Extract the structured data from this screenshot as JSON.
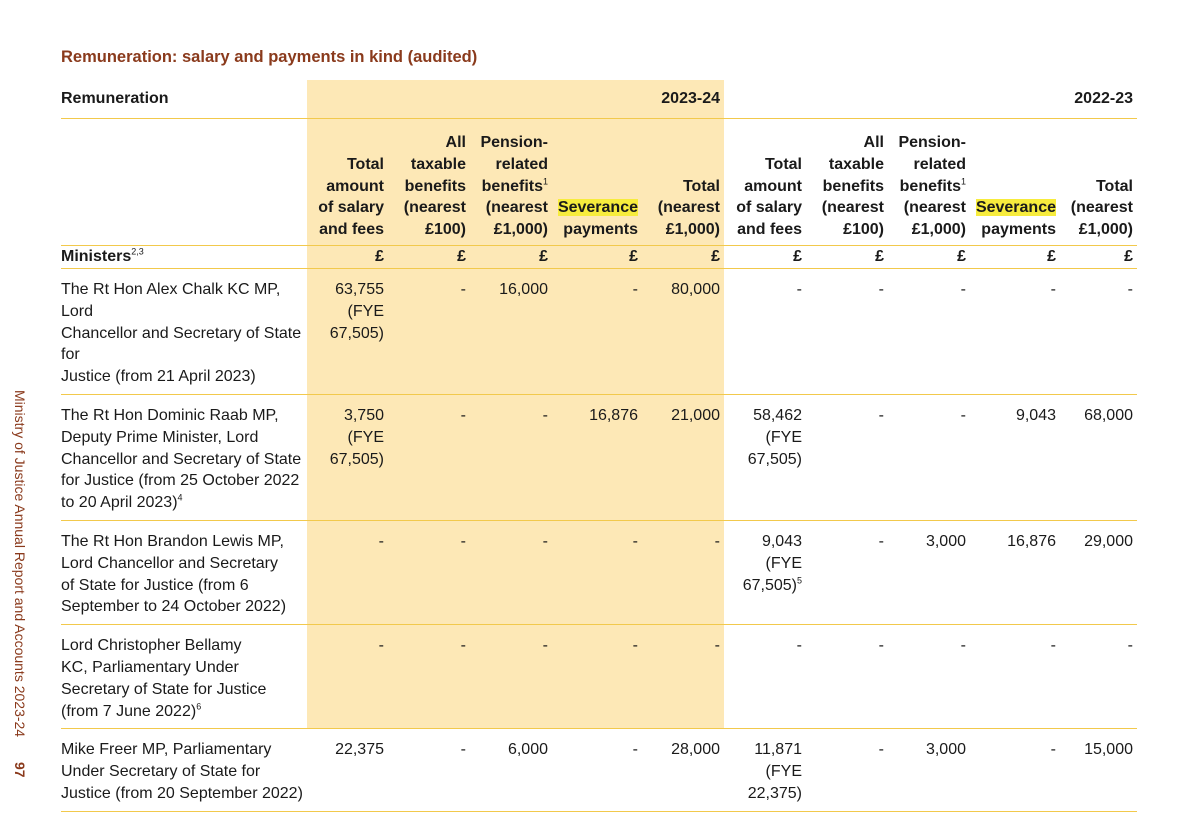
{
  "sidebar": {
    "report_title": "Ministry of Justice Annual Report and Accounts 2023-24",
    "page_number": "97"
  },
  "title": "Remuneration: salary and payments in kind (audited)",
  "year_row": {
    "label": "Remuneration",
    "year_current": "2023-24",
    "year_prior": "2022-23"
  },
  "headers": {
    "salary": [
      "Total",
      "amount",
      "of salary",
      "and fees"
    ],
    "benefits": [
      "All",
      "taxable",
      "benefits",
      "(nearest",
      "£100)"
    ],
    "pension": [
      "Pension-",
      "related",
      "benefits",
      "(nearest",
      "£1,000)"
    ],
    "pension_sup": "1",
    "severance": [
      "Severance",
      "payments"
    ],
    "total": [
      "Total",
      "(nearest",
      "£1,000)"
    ]
  },
  "units": {
    "label": "Ministers",
    "label_sup": "2,3",
    "symbol": "£"
  },
  "rows": [
    {
      "name_lines": [
        "The Rt Hon Alex Chalk KC MP, Lord",
        "Chancellor and Secretary of State for",
        "Justice (from 21 April 2023)"
      ],
      "name_sup": "",
      "c_salary": [
        "63,755",
        "(FYE",
        "67,505)"
      ],
      "c_salary_sup": "",
      "c_benefits": "-",
      "c_pension": "16,000",
      "c_severance": "-",
      "c_total": "80,000",
      "p_salary": [
        "-"
      ],
      "p_salary_sup": "",
      "p_benefits": "-",
      "p_pension": "-",
      "p_severance": "-",
      "p_total": "-"
    },
    {
      "name_lines": [
        "The Rt Hon Dominic Raab MP,",
        "Deputy Prime Minister, Lord",
        "Chancellor and Secretary of State",
        "for Justice (from 25 October 2022",
        "to 20 April 2023)"
      ],
      "name_sup": "4",
      "c_salary": [
        "3,750",
        "(FYE",
        "67,505)"
      ],
      "c_salary_sup": "",
      "c_benefits": "-",
      "c_pension": "-",
      "c_severance": "16,876",
      "c_total": "21,000",
      "p_salary": [
        "58,462",
        "(FYE",
        "67,505)"
      ],
      "p_salary_sup": "",
      "p_benefits": "-",
      "p_pension": "-",
      "p_severance": "9,043",
      "p_total": "68,000"
    },
    {
      "name_lines": [
        "The Rt Hon Brandon Lewis MP,",
        "Lord Chancellor and Secretary",
        "of State for Justice (from 6",
        "September to 24 October 2022)"
      ],
      "name_sup": "",
      "c_salary": [
        "-"
      ],
      "c_salary_sup": "",
      "c_benefits": "-",
      "c_pension": "-",
      "c_severance": "-",
      "c_total": "-",
      "p_salary": [
        "9,043",
        "(FYE",
        "67,505)"
      ],
      "p_salary_sup": "5",
      "p_benefits": "-",
      "p_pension": "3,000",
      "p_severance": "16,876",
      "p_total": "29,000"
    },
    {
      "name_lines": [
        "Lord Christopher Bellamy",
        "KC, Parliamentary Under",
        "Secretary of State for Justice",
        "(from 7 June 2022)"
      ],
      "name_sup": "6",
      "c_salary": [
        "-"
      ],
      "c_salary_sup": "",
      "c_benefits": "-",
      "c_pension": "-",
      "c_severance": "-",
      "c_total": "-",
      "p_salary": [
        "-"
      ],
      "p_salary_sup": "",
      "p_benefits": "-",
      "p_pension": "-",
      "p_severance": "-",
      "p_total": "-"
    },
    {
      "name_lines": [
        "Mike Freer MP, Parliamentary",
        "Under Secretary of State for",
        "Justice (from 20 September 2022)"
      ],
      "name_sup": "",
      "c_salary": [
        "22,375"
      ],
      "c_salary_sup": "",
      "c_benefits": "-",
      "c_pension": "6,000",
      "c_severance": "-",
      "c_total": "28,000",
      "p_salary": [
        "11,871",
        "(FYE",
        "22,375)"
      ],
      "p_salary_sup": "",
      "p_benefits": "-",
      "p_pension": "3,000",
      "p_severance": "-",
      "p_total": "15,000"
    }
  ]
}
